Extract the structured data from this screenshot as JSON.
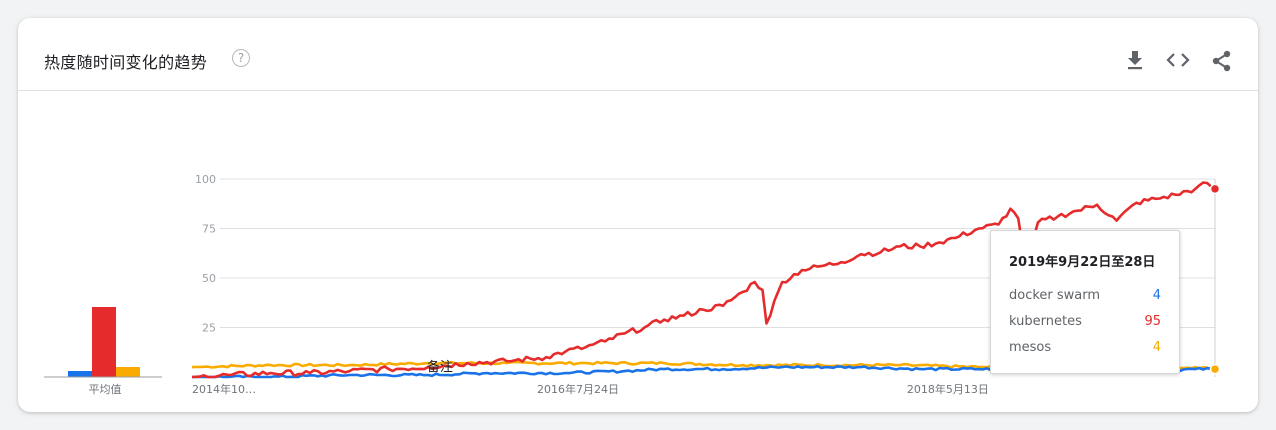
{
  "header": {
    "title": "热度随时间变化的趋势",
    "help_glyph": "?",
    "icons": [
      "help-icon",
      "download-icon",
      "embed-code-icon",
      "share-icon"
    ]
  },
  "tooltip": {
    "date": "2019年9月22日至28日",
    "rows": [
      {
        "label": "docker swarm",
        "value": "4",
        "color": "#1a73e8"
      },
      {
        "label": "kubernetes",
        "value": "95",
        "color": "#e52b2b"
      },
      {
        "label": "mesos",
        "value": "4",
        "color": "#f9ab00"
      }
    ]
  },
  "chart_data": [
    {
      "type": "bar",
      "xlabel": "平均值",
      "categories": [
        "docker swarm",
        "kubernetes",
        "mesos"
      ],
      "values": [
        3,
        35,
        5
      ],
      "colors": [
        "#1a73e8",
        "#e52b2b",
        "#f9ab00"
      ],
      "ylim": [
        0,
        100
      ]
    },
    {
      "type": "line",
      "x_unit": "week index (0 = 2014年10月 first week, 260 = 2019年9月22日至28日)",
      "x_range": [
        0,
        260
      ],
      "x_ticks": [
        {
          "label": "2014年10…",
          "x": 0
        },
        {
          "label": "2016年7月24日",
          "x": 92
        },
        {
          "label": "2018年5月13日",
          "x": 186
        }
      ],
      "ylim": [
        0,
        100
      ],
      "y_ticks": [
        25,
        50,
        75,
        100
      ],
      "grid": true,
      "annotation": {
        "label": "备注",
        "x": 63
      },
      "hover_x": 260,
      "series": [
        {
          "name": "docker swarm",
          "color": "#1a73e8",
          "points": [
            [
              0,
              0
            ],
            [
              20,
              0
            ],
            [
              40,
              1
            ],
            [
              60,
              1
            ],
            [
              75,
              2
            ],
            [
              95,
              2
            ],
            [
              110,
              3
            ],
            [
              120,
              4
            ],
            [
              135,
              4
            ],
            [
              150,
              5
            ],
            [
              170,
              5
            ],
            [
              185,
              4
            ],
            [
              200,
              4
            ],
            [
              215,
              4
            ],
            [
              225,
              4
            ],
            [
              235,
              4
            ],
            [
              245,
              3
            ],
            [
              255,
              4
            ],
            [
              260,
              4
            ]
          ]
        },
        {
          "name": "kubernetes",
          "color": "#e52b2b",
          "points": [
            [
              0,
              0
            ],
            [
              10,
              1
            ],
            [
              20,
              2
            ],
            [
              30,
              2
            ],
            [
              40,
              3
            ],
            [
              50,
              4
            ],
            [
              60,
              5
            ],
            [
              70,
              7
            ],
            [
              80,
              8
            ],
            [
              90,
              10
            ],
            [
              95,
              13
            ],
            [
              100,
              15
            ],
            [
              105,
              18
            ],
            [
              110,
              22
            ],
            [
              115,
              25
            ],
            [
              120,
              29
            ],
            [
              125,
              31
            ],
            [
              130,
              34
            ],
            [
              135,
              36
            ],
            [
              140,
              43
            ],
            [
              143,
              48
            ],
            [
              145,
              44
            ],
            [
              146,
              27
            ],
            [
              150,
              48
            ],
            [
              155,
              54
            ],
            [
              160,
              56
            ],
            [
              165,
              58
            ],
            [
              170,
              62
            ],
            [
              175,
              63
            ],
            [
              180,
              66
            ],
            [
              185,
              66
            ],
            [
              190,
              68
            ],
            [
              195,
              71
            ],
            [
              200,
              75
            ],
            [
              205,
              77
            ],
            [
              208,
              85
            ],
            [
              210,
              80
            ],
            [
              212,
              55
            ],
            [
              215,
              78
            ],
            [
              220,
              81
            ],
            [
              225,
              84
            ],
            [
              230,
              87
            ],
            [
              235,
              79
            ],
            [
              240,
              88
            ],
            [
              245,
              90
            ],
            [
              250,
              92
            ],
            [
              255,
              95
            ],
            [
              258,
              98
            ],
            [
              260,
              95
            ]
          ]
        },
        {
          "name": "mesos",
          "color": "#f9ab00",
          "points": [
            [
              0,
              5
            ],
            [
              20,
              6
            ],
            [
              40,
              6
            ],
            [
              60,
              7
            ],
            [
              80,
              7
            ],
            [
              100,
              7
            ],
            [
              120,
              7
            ],
            [
              140,
              6
            ],
            [
              160,
              6
            ],
            [
              180,
              6
            ],
            [
              200,
              5
            ],
            [
              220,
              5
            ],
            [
              240,
              4
            ],
            [
              255,
              5
            ],
            [
              260,
              4
            ]
          ]
        }
      ]
    }
  ]
}
